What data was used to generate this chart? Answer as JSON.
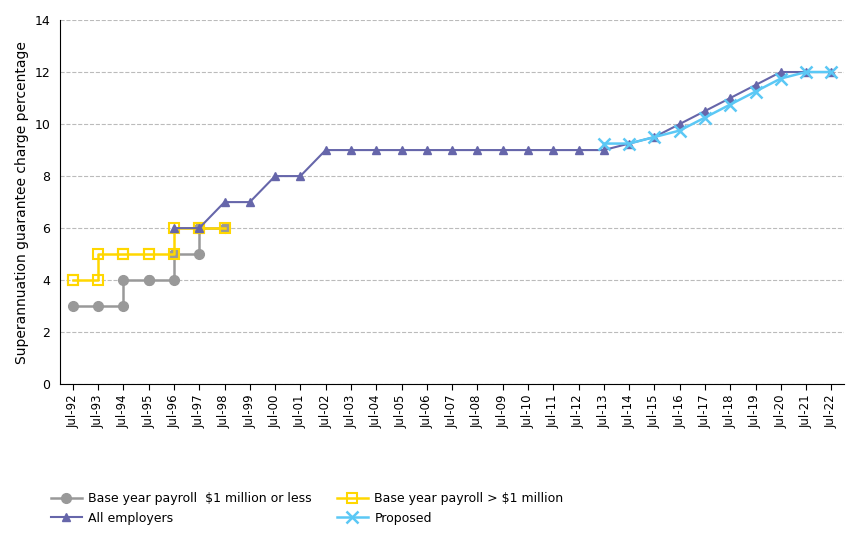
{
  "ylabel": "Superannuation guarantee charge percentage",
  "ylim": [
    0,
    14
  ],
  "yticks": [
    0,
    2,
    4,
    6,
    8,
    10,
    12,
    14
  ],
  "x_labels": [
    "Jul-92",
    "Jul-93",
    "Jul-94",
    "Jul-95",
    "Jul-96",
    "Jul-97",
    "Jul-98",
    "Jul-99",
    "Jul-00",
    "Jul-01",
    "Jul-02",
    "Jul-03",
    "Jul-04",
    "Jul-05",
    "Jul-06",
    "Jul-07",
    "Jul-08",
    "Jul-09",
    "Jul-10",
    "Jul-11",
    "Jul-12",
    "Jul-13",
    "Jul-14",
    "Jul-15",
    "Jul-16",
    "Jul-17",
    "Jul-18",
    "Jul-19",
    "Jul-20",
    "Jul-21",
    "Jul-22"
  ],
  "base_small": {
    "x": [
      0,
      1,
      2,
      2,
      3,
      3,
      4,
      4,
      5,
      5,
      6
    ],
    "y": [
      3.0,
      3.0,
      3.0,
      4.0,
      4.0,
      4.0,
      4.0,
      5.0,
      5.0,
      6.0,
      6.0
    ],
    "color": "#999999",
    "marker": "o",
    "label": "Base year payroll  $1 million or less"
  },
  "base_large": {
    "x": [
      0,
      0,
      1,
      1,
      2,
      2,
      3,
      3,
      4,
      4,
      5,
      5,
      6
    ],
    "y": [
      4.0,
      4.0,
      4.0,
      5.0,
      5.0,
      5.0,
      5.0,
      5.0,
      5.0,
      6.0,
      6.0,
      6.0,
      6.0
    ],
    "color": "#FFD700",
    "marker": "s",
    "label": "Base year payroll > $1 million"
  },
  "all_employers": {
    "x": [
      4,
      5,
      6,
      7,
      8,
      9,
      10,
      11,
      12,
      13,
      14,
      15,
      16,
      17,
      18,
      19,
      20,
      21,
      22,
      23,
      24,
      25,
      26,
      27,
      28,
      29,
      30
    ],
    "y": [
      6.0,
      6.0,
      7.0,
      7.0,
      8.0,
      8.0,
      9.0,
      9.0,
      9.0,
      9.0,
      9.0,
      9.0,
      9.0,
      9.0,
      9.0,
      9.0,
      9.0,
      9.0,
      9.25,
      9.5,
      10.0,
      10.5,
      11.0,
      11.5,
      12.0,
      12.0,
      12.0
    ],
    "color": "#6666AA",
    "marker": "^",
    "label": "All employers"
  },
  "proposed": {
    "x": [
      21,
      22,
      23,
      24,
      25,
      26,
      27,
      28,
      29,
      30
    ],
    "y": [
      9.25,
      9.25,
      9.5,
      9.75,
      10.25,
      10.75,
      11.25,
      11.75,
      12.0,
      12.0
    ],
    "color": "#5BC8F5",
    "marker": "x",
    "label": "Proposed"
  },
  "background_color": "#FFFFFF",
  "grid_color": "#BBBBBB"
}
